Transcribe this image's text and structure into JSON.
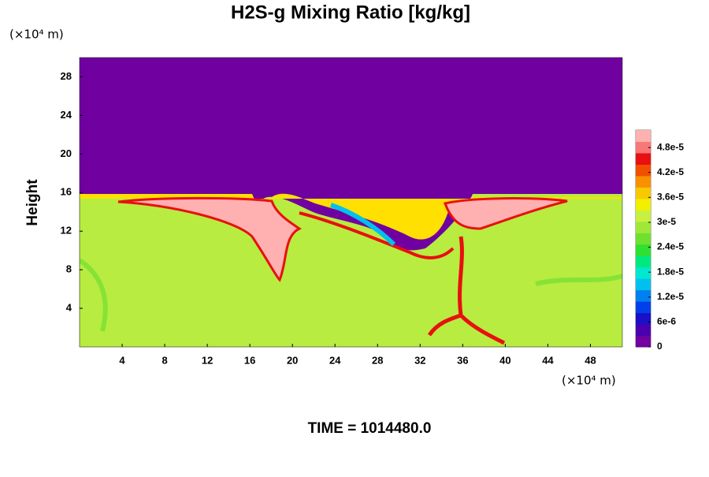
{
  "chart_data": {
    "type": "contour",
    "title": "H2S-g Mixing Ratio [kg/kg]",
    "ylabel": "Height",
    "y_unit": "(×10⁴ m)",
    "x_unit": "(×10⁴ m)",
    "footer": "TIME = 1014480.0",
    "xlim": [
      0,
      51
    ],
    "xticks": [
      4,
      8,
      12,
      16,
      20,
      24,
      28,
      32,
      36,
      40,
      44,
      48
    ],
    "ylim": [
      0,
      30
    ],
    "yticks": [
      4,
      8,
      12,
      16,
      20,
      24,
      28
    ],
    "colorbar": {
      "lim": [
        0,
        5.22e-05
      ],
      "ticks": [
        0,
        {
          "value": 6e-06,
          "label": "6e-6"
        },
        {
          "value": 1.2e-05,
          "label": "1.2e-5"
        },
        {
          "value": 1.8e-05,
          "label": "1.8e-5"
        },
        {
          "value": 2.4e-05,
          "label": "2.4e-5"
        },
        {
          "value": 3e-05,
          "label": "3e-5"
        },
        {
          "value": 3.6e-05,
          "label": "3.6e-5"
        },
        {
          "value": 4.2e-05,
          "label": "4.2e-5"
        },
        {
          "value": 4.8e-05,
          "label": "4.8e-5"
        }
      ],
      "colors": [
        "#7000a0",
        "#4a00b0",
        "#1a10c8",
        "#0040e8",
        "#0080f0",
        "#00c0f0",
        "#00e8d0",
        "#00e880",
        "#30e030",
        "#70e030",
        "#a0e838",
        "#c8f040",
        "#f0f000",
        "#f8c800",
        "#f89000",
        "#f05000",
        "#e81010",
        "#f87878",
        "#ffb0b0"
      ]
    }
  }
}
